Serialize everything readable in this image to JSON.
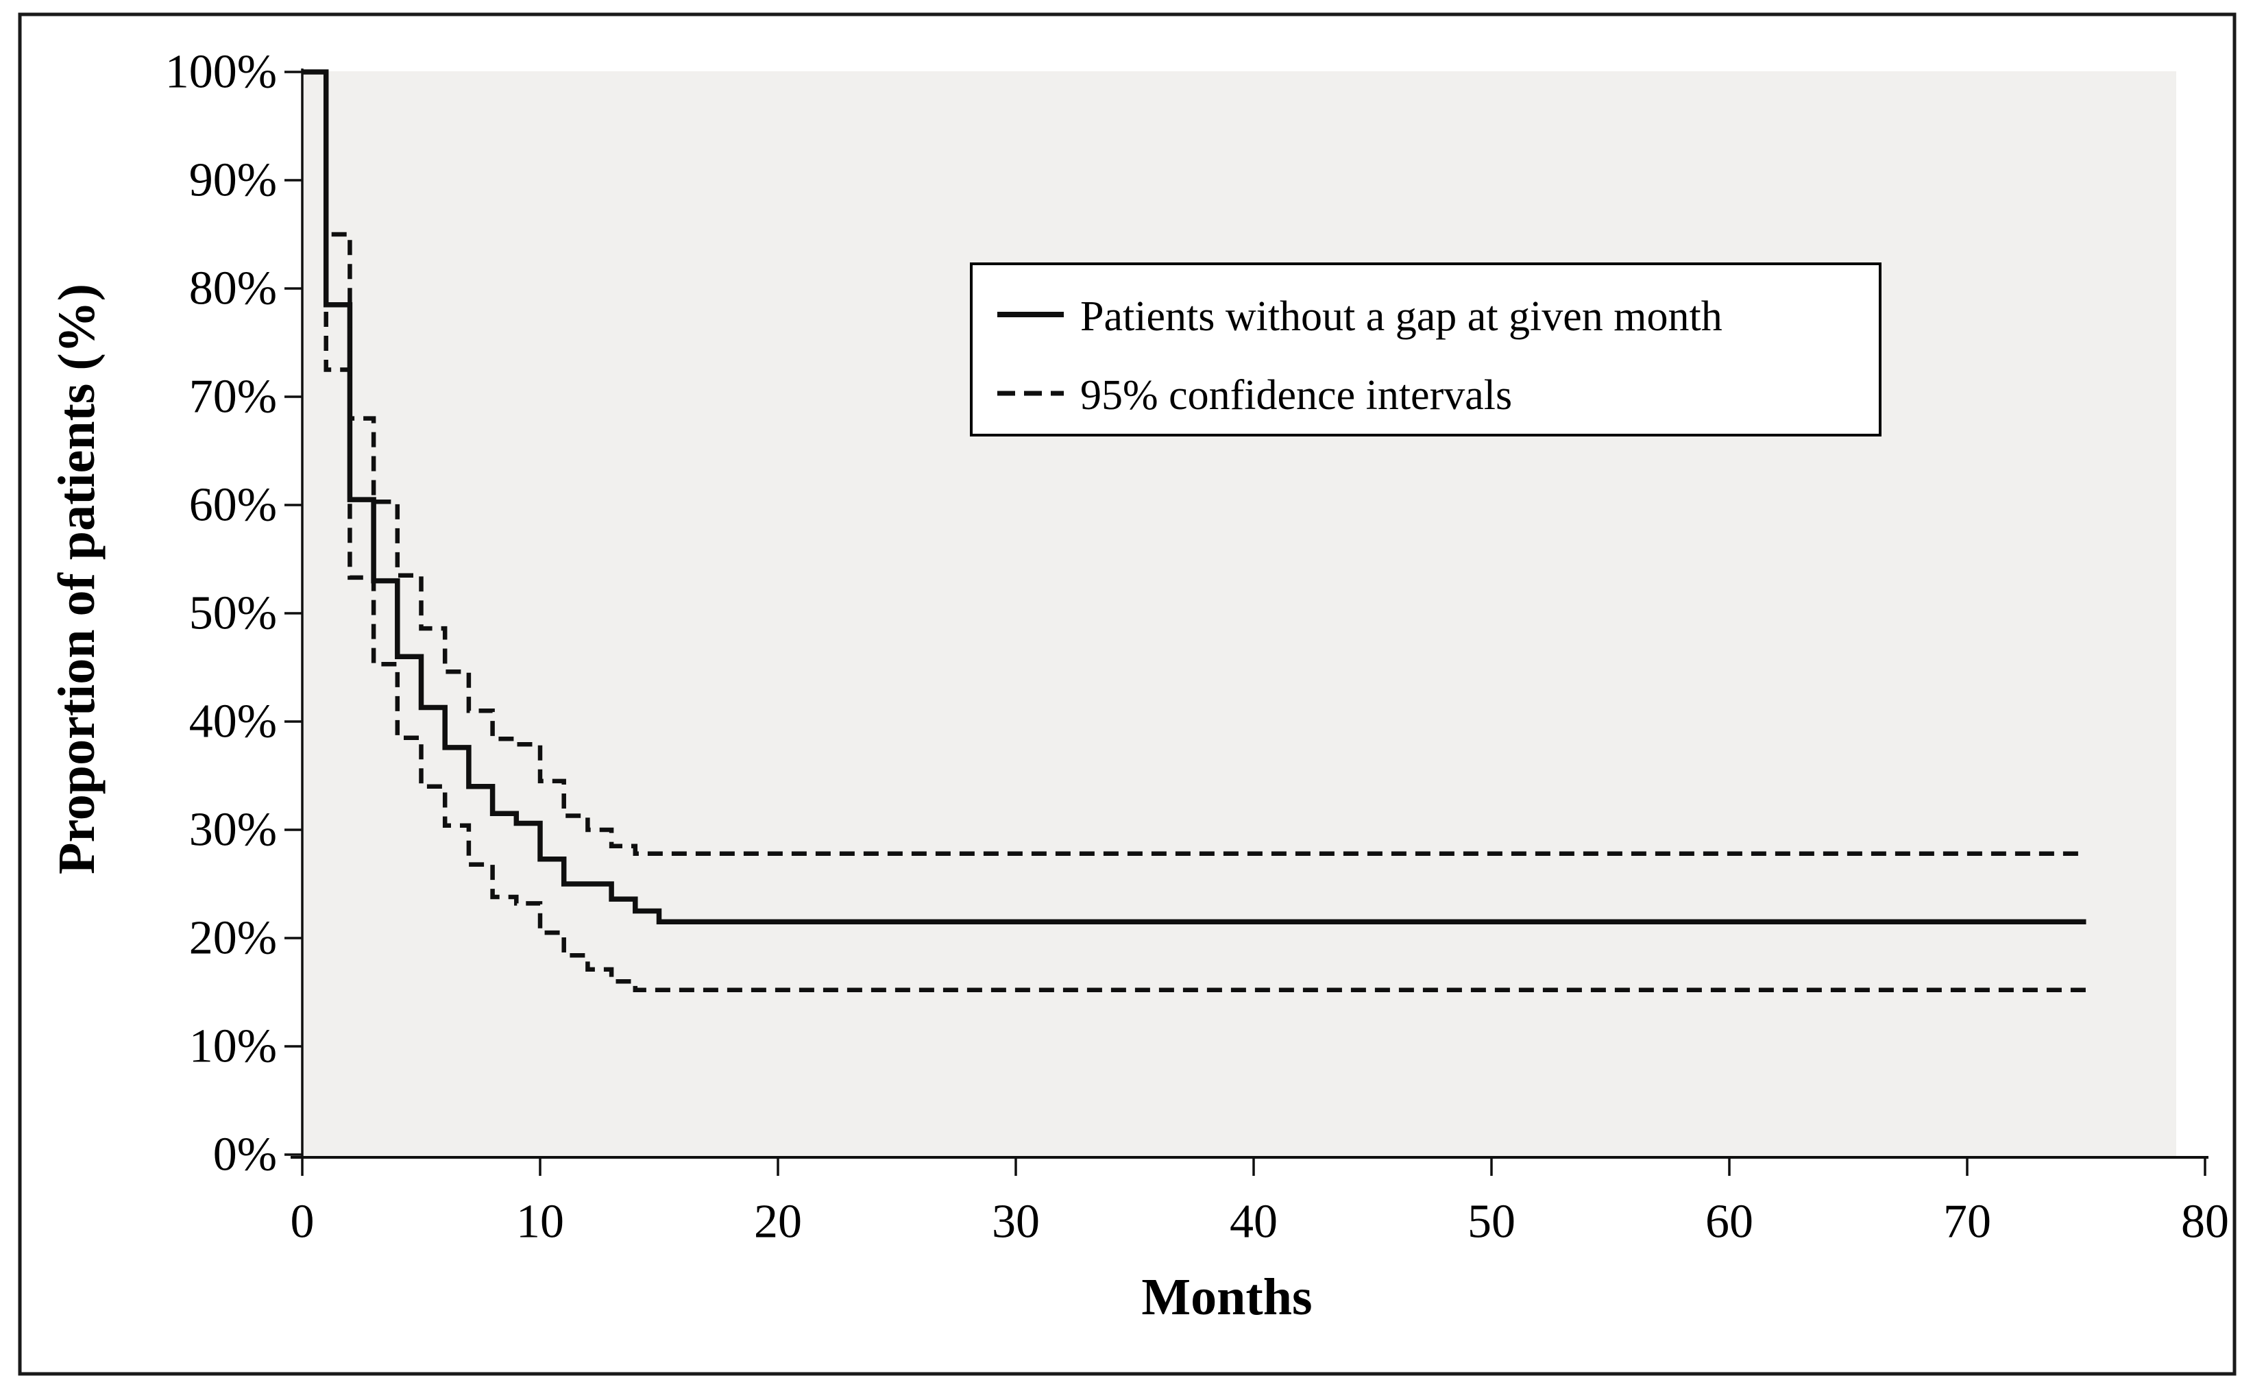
{
  "figure": {
    "colors": {
      "page_background": "#ffffff",
      "plot_background": "#f1f0ee",
      "line_color": "#0f0f0f",
      "frame_color": "#1a1a1a",
      "legend_background": "#ffffff",
      "legend_border": "#000000"
    }
  },
  "axes": {
    "x_title": "Months",
    "y_title": "Proportion of patients (%)",
    "x_tick_labels": [
      "0",
      "10",
      "20",
      "30",
      "40",
      "50",
      "60",
      "70",
      "80"
    ],
    "y_tick_labels": [
      "0%",
      "10%",
      "20%",
      "30%",
      "40%",
      "50%",
      "60%",
      "70%",
      "80%",
      "90%",
      "100%"
    ]
  },
  "legend": {
    "items": [
      {
        "label": "Patients without a gap at given month",
        "style": "solid"
      },
      {
        "label": "95% confidence intervals",
        "style": "dashed"
      }
    ]
  },
  "chart_data": {
    "type": "line",
    "subtype": "kaplan-meier-step",
    "title": "",
    "xlabel": "Months",
    "ylabel": "Proportion of patients (%)",
    "xlim": [
      0,
      80
    ],
    "ylim": [
      0,
      100
    ],
    "x_ticks": [
      0,
      10,
      20,
      30,
      40,
      50,
      60,
      70,
      80
    ],
    "y_ticks": [
      0,
      10,
      20,
      30,
      40,
      50,
      60,
      70,
      80,
      90,
      100
    ],
    "grid": false,
    "legend_position": "upper-center-right",
    "end_month": 75,
    "series": [
      {
        "name": "Patients without a gap at given month",
        "id": "km-curve",
        "style": "solid",
        "points_month_percent": [
          [
            0,
            100
          ],
          [
            1,
            78.5
          ],
          [
            2,
            60.5
          ],
          [
            3,
            53
          ],
          [
            4,
            46
          ],
          [
            5,
            41.3
          ],
          [
            6,
            37.6
          ],
          [
            7,
            34
          ],
          [
            8,
            31.5
          ],
          [
            9,
            30.6
          ],
          [
            10,
            27.3
          ],
          [
            11,
            25
          ],
          [
            13,
            23.6
          ],
          [
            14,
            22.5
          ],
          [
            15,
            21.5
          ],
          [
            75,
            21.5
          ]
        ]
      },
      {
        "name": "95% confidence interval (upper)",
        "id": "ci-upper-curve",
        "style": "dashed",
        "points_month_percent": [
          [
            1,
            100
          ],
          [
            1,
            85
          ],
          [
            2,
            68
          ],
          [
            3,
            60.3
          ],
          [
            4,
            53.5
          ],
          [
            5,
            48.6
          ],
          [
            6,
            44.6
          ],
          [
            7,
            41
          ],
          [
            8,
            38.4
          ],
          [
            9,
            37.9
          ],
          [
            10,
            34.5
          ],
          [
            11,
            31.3
          ],
          [
            12,
            30
          ],
          [
            13,
            28.5
          ],
          [
            14,
            27.8
          ],
          [
            75,
            27.8
          ]
        ]
      },
      {
        "name": "95% confidence interval (lower)",
        "id": "ci-lower-curve",
        "style": "dashed",
        "points_month_percent": [
          [
            1,
            100
          ],
          [
            1,
            72.5
          ],
          [
            2,
            53.3
          ],
          [
            3,
            45.3
          ],
          [
            4,
            38.5
          ],
          [
            5,
            34
          ],
          [
            6,
            30.4
          ],
          [
            7,
            26.8
          ],
          [
            8,
            23.8
          ],
          [
            9,
            23.2
          ],
          [
            10,
            20.5
          ],
          [
            11,
            18.4
          ],
          [
            12,
            17.1
          ],
          [
            13,
            16
          ],
          [
            14,
            15.2
          ],
          [
            75,
            15.2
          ]
        ]
      }
    ]
  }
}
